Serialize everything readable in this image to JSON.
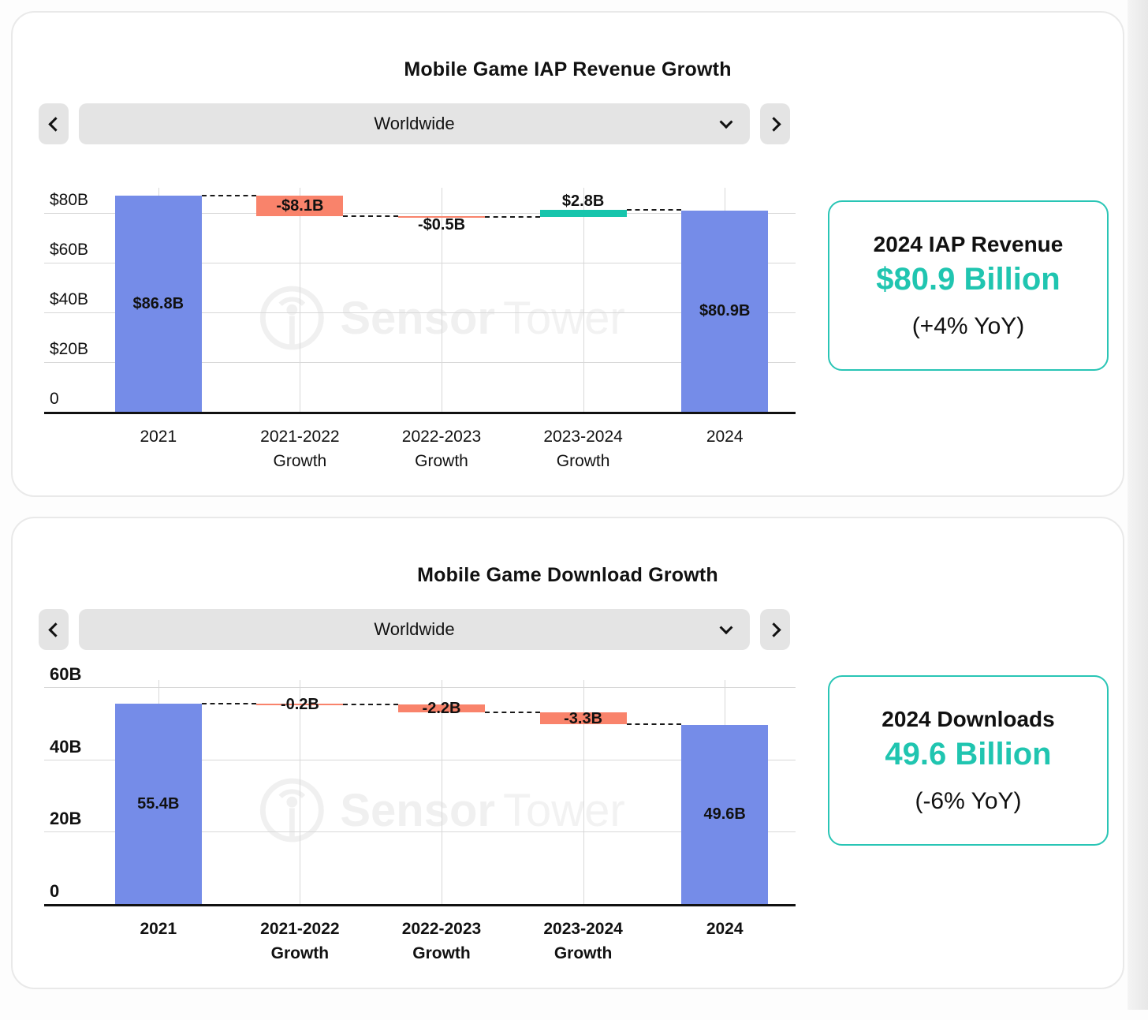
{
  "colors": {
    "bar_blue": "#758CE8",
    "bar_salmon": "#F9836B",
    "bar_teal": "#17C5AC",
    "accent_teal_text": "#20C5B0",
    "card_border_teal": "#29C5B5",
    "gridline": "#D8D8D8",
    "watermark": "#F0F0F0"
  },
  "panels": [
    {
      "title": "Mobile Game IAP Revenue Growth",
      "region_selector": {
        "value": "Worldwide"
      },
      "watermark": {
        "brand_bold": "Sensor",
        "brand_light": "Tower"
      },
      "stat_card": {
        "title": "2024 IAP Revenue",
        "value": "$80.9 Billion",
        "yoy": "(+4% YoY)",
        "accent": "#20C5B0"
      },
      "chart_data": {
        "type": "bar",
        "subtype": "waterfall",
        "title": "Mobile Game IAP Revenue Growth",
        "categories": [
          "2021",
          "2021-2022\nGrowth",
          "2022-2023\nGrowth",
          "2023-2024\nGrowth",
          "2024"
        ],
        "bars": [
          {
            "category": "2021",
            "kind": "total",
            "value": 86.8,
            "label": "$86.8B",
            "color": "#758CE8",
            "label_position": "center"
          },
          {
            "category": "2021-2022 Growth",
            "kind": "delta",
            "value": -8.1,
            "label": "-$8.1B",
            "color": "#F9836B",
            "label_position": "center"
          },
          {
            "category": "2022-2023 Growth",
            "kind": "delta",
            "value": -0.5,
            "label": "-$0.5B",
            "color": "#F9836B",
            "label_position": "below"
          },
          {
            "category": "2023-2024 Growth",
            "kind": "delta",
            "value": 2.8,
            "label": "$2.8B",
            "color": "#17C5AC",
            "label_position": "above"
          },
          {
            "category": "2024",
            "kind": "total",
            "value": 80.9,
            "label": "$80.9B",
            "color": "#758CE8",
            "label_position": "center"
          }
        ],
        "ylim": [
          0,
          90
        ],
        "yticks": [
          {
            "v": 0,
            "label": "0"
          },
          {
            "v": 20,
            "label": "$20B"
          },
          {
            "v": 40,
            "label": "$40B"
          },
          {
            "v": 60,
            "label": "$60B"
          },
          {
            "v": 80,
            "label": "$80B"
          }
        ],
        "grid": true,
        "bold_axis_labels": false
      }
    },
    {
      "title": "Mobile Game Download Growth",
      "region_selector": {
        "value": "Worldwide"
      },
      "watermark": {
        "brand_bold": "Sensor",
        "brand_light": "Tower"
      },
      "stat_card": {
        "title": "2024 Downloads",
        "value": "49.6 Billion",
        "yoy": "(-6% YoY)",
        "accent": "#20C5B0"
      },
      "chart_data": {
        "type": "bar",
        "subtype": "waterfall",
        "title": "Mobile Game Download Growth",
        "categories": [
          "2021",
          "2021-2022\nGrowth",
          "2022-2023\nGrowth",
          "2023-2024\nGrowth",
          "2024"
        ],
        "bars": [
          {
            "category": "2021",
            "kind": "total",
            "value": 55.4,
            "label": "55.4B",
            "color": "#758CE8",
            "label_position": "center"
          },
          {
            "category": "2021-2022 Growth",
            "kind": "delta",
            "value": -0.2,
            "label": "-0.2B",
            "color": "#F9836B",
            "label_position": "center"
          },
          {
            "category": "2022-2023 Growth",
            "kind": "delta",
            "value": -2.2,
            "label": "-2.2B",
            "color": "#F9836B",
            "label_position": "center"
          },
          {
            "category": "2023-2024 Growth",
            "kind": "delta",
            "value": -3.3,
            "label": "-3.3B",
            "color": "#F9836B",
            "label_position": "center"
          },
          {
            "category": "2024",
            "kind": "total",
            "value": 49.6,
            "label": "49.6B",
            "color": "#758CE8",
            "label_position": "center"
          }
        ],
        "ylim": [
          0,
          62
        ],
        "yticks": [
          {
            "v": 0,
            "label": "0"
          },
          {
            "v": 20,
            "label": "20B"
          },
          {
            "v": 40,
            "label": "40B"
          },
          {
            "v": 60,
            "label": "60B"
          }
        ],
        "grid": true,
        "bold_axis_labels": true
      }
    }
  ]
}
